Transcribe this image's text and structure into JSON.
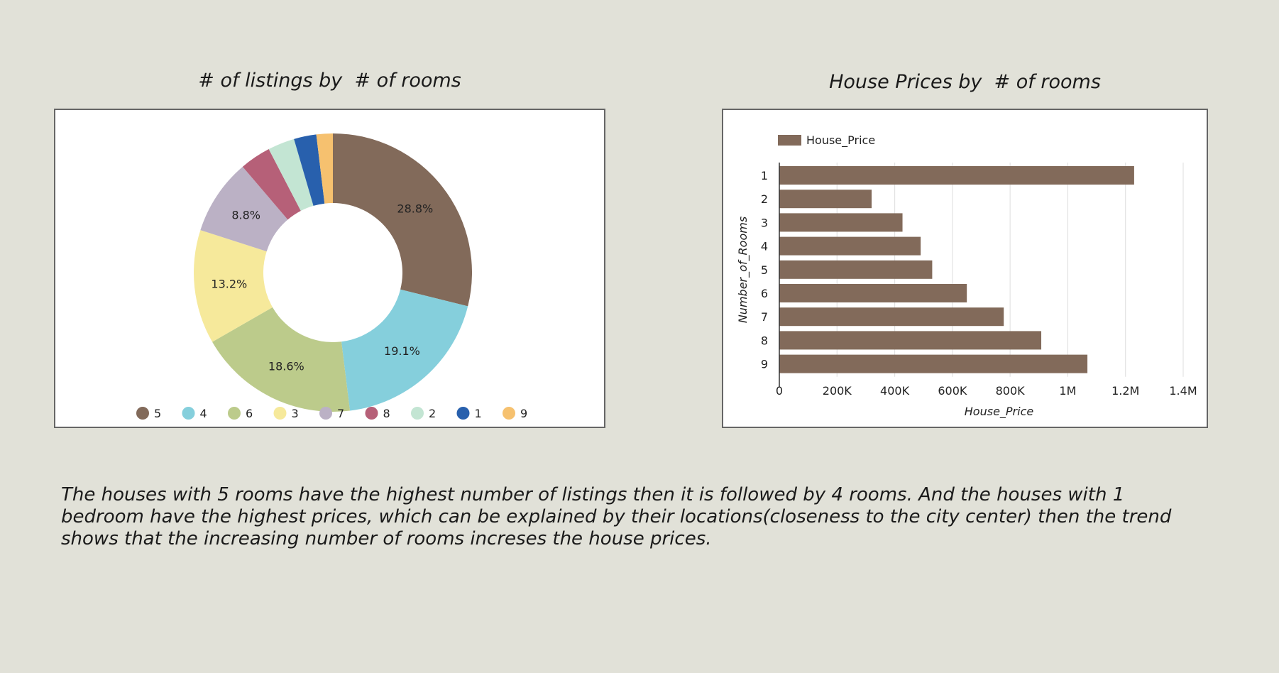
{
  "summary": "The houses with 5 rooms have the highest number of listings then it is followed by 4 rooms. And the houses with 1 bedroom have the highest prices, which can be explained by their locations(closeness to the city center) then the trend shows that the increasing number of rooms increses the house prices.",
  "chart_data": [
    {
      "type": "pie",
      "title": "# of listings by  # of rooms",
      "donut": true,
      "legend_position": "bottom",
      "slices": [
        {
          "label": "5",
          "value": 28.8,
          "display": "28.8%",
          "color": "#826a5a"
        },
        {
          "label": "4",
          "value": 19.1,
          "display": "19.1%",
          "color": "#85cfdc"
        },
        {
          "label": "6",
          "value": 18.6,
          "display": "18.6%",
          "color": "#bccb8b"
        },
        {
          "label": "3",
          "value": 13.2,
          "display": "13.2%",
          "color": "#f6e99b"
        },
        {
          "label": "7",
          "value": 8.8,
          "display": "8.8%",
          "color": "#bbb1c5"
        },
        {
          "label": "8",
          "value": 3.6,
          "display": "",
          "color": "#b66078"
        },
        {
          "label": "2",
          "value": 3.1,
          "display": "",
          "color": "#c3e5d3"
        },
        {
          "label": "1",
          "value": 2.6,
          "display": "",
          "color": "#2860ad"
        },
        {
          "label": "9",
          "value": 1.9,
          "display": "",
          "color": "#f6c16f"
        }
      ]
    },
    {
      "type": "bar",
      "orientation": "horizontal",
      "title": "House Prices by  # of rooms",
      "xlabel": "House_Price",
      "ylabel": "Number_of_Rooms",
      "legend": [
        "House_Price"
      ],
      "legend_position": "top-left",
      "bar_color": "#826a5a",
      "categories": [
        "1",
        "2",
        "3",
        "4",
        "5",
        "6",
        "7",
        "8",
        "9"
      ],
      "values": [
        1230000,
        320000,
        427000,
        490000,
        530000,
        650000,
        778000,
        908000,
        1068000
      ],
      "xlim": [
        0,
        1400000
      ],
      "xticks": [
        0,
        200000,
        400000,
        600000,
        800000,
        1000000,
        1200000,
        1400000
      ],
      "xtick_labels": [
        "0",
        "200K",
        "400K",
        "600K",
        "800K",
        "1M",
        "1.2M",
        "1.4M"
      ],
      "grid": true
    }
  ]
}
